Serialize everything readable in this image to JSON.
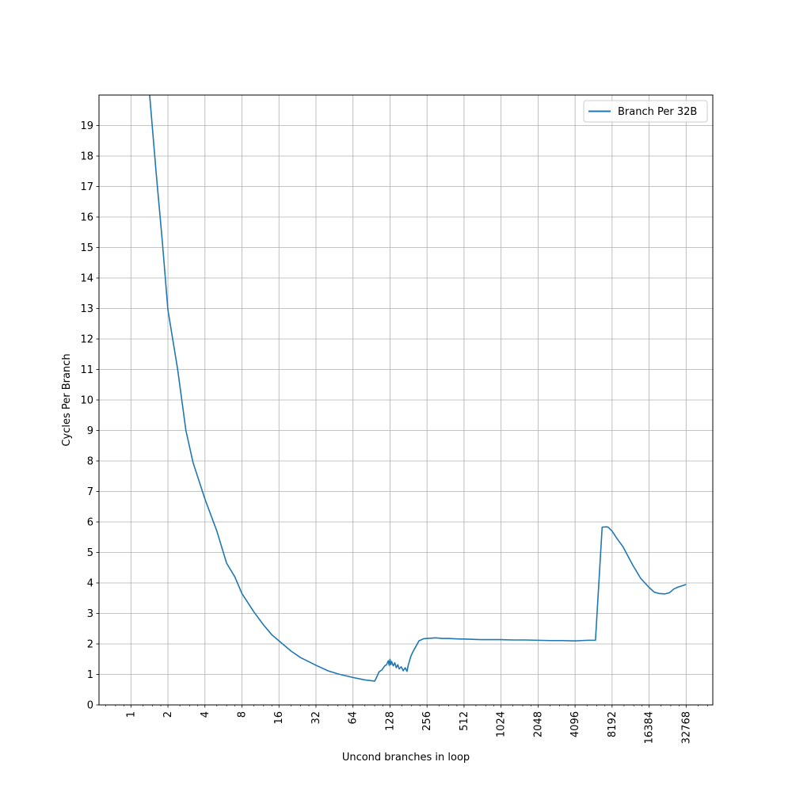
{
  "chart_data": {
    "type": "line",
    "xlabel": "Uncond branches in loop",
    "ylabel": "Cycles Per Branch",
    "xscale": "log2",
    "xlim": [
      0.55,
      54000
    ],
    "ylim": [
      0,
      20
    ],
    "grid": true,
    "legend_position": "top-right",
    "x_ticks": [
      1,
      2,
      4,
      8,
      16,
      32,
      64,
      128,
      256,
      512,
      1024,
      2048,
      4096,
      8192,
      16384,
      32768
    ],
    "x_tick_labels": [
      "1",
      "2",
      "4",
      "8",
      "16",
      "32",
      "64",
      "128",
      "256",
      "512",
      "1024",
      "2048",
      "4096",
      "8192",
      "16384",
      "32768"
    ],
    "y_ticks": [
      0,
      1,
      2,
      3,
      4,
      5,
      6,
      7,
      8,
      9,
      10,
      11,
      12,
      13,
      14,
      15,
      16,
      17,
      18,
      19
    ],
    "y_tick_labels": [
      "0",
      "1",
      "2",
      "3",
      "4",
      "5",
      "6",
      "7",
      "8",
      "9",
      "10",
      "11",
      "12",
      "13",
      "14",
      "15",
      "16",
      "17",
      "18",
      "19"
    ],
    "series": [
      {
        "name": "Branch Per 32B",
        "color": "#1f77b4",
        "x": [
          1.42,
          1.6,
          1.8,
          2,
          2.4,
          2.8,
          3.2,
          4,
          5,
          6,
          7,
          8,
          10,
          12,
          14,
          16,
          20,
          24,
          32,
          40,
          48,
          64,
          80,
          96,
          100,
          104,
          110,
          116,
          120,
          124,
          126,
          128,
          130,
          132,
          136,
          140,
          144,
          148,
          152,
          158,
          164,
          170,
          176,
          180,
          190,
          200,
          210,
          220,
          240,
          256,
          280,
          300,
          340,
          380,
          420,
          480,
          512,
          600,
          700,
          800,
          1024,
          1300,
          1600,
          2048,
          2600,
          3200,
          4096,
          4600,
          5200,
          5700,
          6000,
          6800,
          7400,
          7600,
          8192,
          9000,
          10000,
          12000,
          14000,
          16384,
          18000,
          20000,
          22000,
          24000,
          26000,
          28000,
          30000,
          32768
        ],
        "y": [
          20,
          17.5,
          15.2,
          12.95,
          11.0,
          9.0,
          7.95,
          6.75,
          5.7,
          4.65,
          4.2,
          3.65,
          3.05,
          2.62,
          2.3,
          2.1,
          1.77,
          1.55,
          1.3,
          1.12,
          1.02,
          0.9,
          0.82,
          0.78,
          0.92,
          1.08,
          1.15,
          1.28,
          1.32,
          1.45,
          1.3,
          1.5,
          1.32,
          1.42,
          1.28,
          1.38,
          1.22,
          1.32,
          1.18,
          1.25,
          1.12,
          1.22,
          1.1,
          1.3,
          1.62,
          1.8,
          1.95,
          2.1,
          2.17,
          2.18,
          2.19,
          2.2,
          2.18,
          2.18,
          2.17,
          2.16,
          2.16,
          2.15,
          2.14,
          2.14,
          2.14,
          2.13,
          2.13,
          2.12,
          2.11,
          2.11,
          2.1,
          2.11,
          2.12,
          2.12,
          2.12,
          5.83,
          5.84,
          5.83,
          5.7,
          5.45,
          5.2,
          4.6,
          4.15,
          3.85,
          3.7,
          3.65,
          3.64,
          3.68,
          3.8,
          3.86,
          3.9,
          3.95
        ]
      }
    ]
  }
}
